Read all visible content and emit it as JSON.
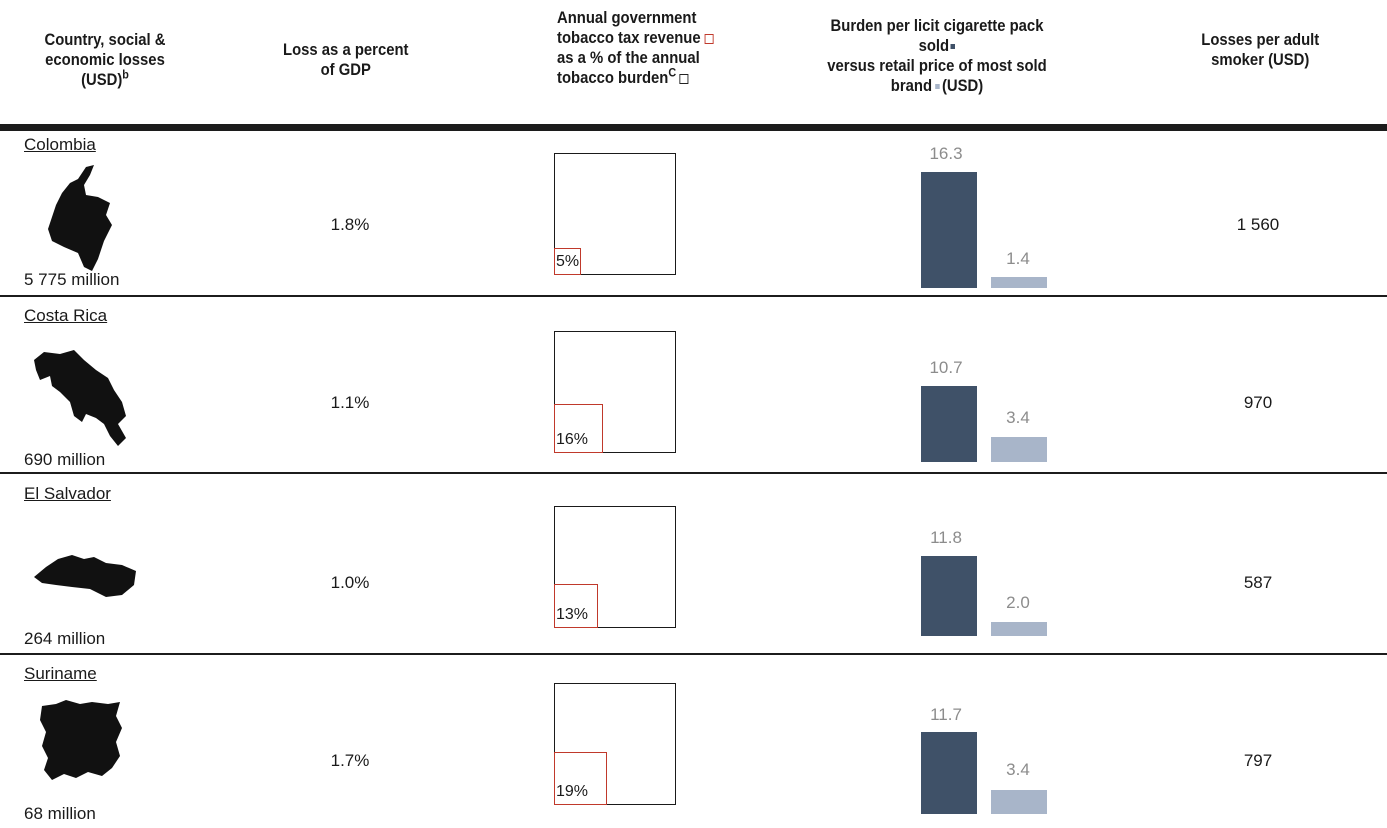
{
  "header": {
    "col1_l1": "Country, social &",
    "col1_l2": "economic losses",
    "col1_l3": "(USD)",
    "col1_sup": "b",
    "col2_l1": "Loss as a percent",
    "col2_l2": "of GDP",
    "col3_l1": "Annual government",
    "col3_l2": "tobacco tax revenue",
    "col3_l3": "as a % of the annual",
    "col3_l4": "tobacco burden",
    "col3_sup": "C",
    "col4_l1": "Burden per licit cigarette pack sold",
    "col4_l2": "versus retail price of most sold",
    "col4_l3a": "brand",
    "col4_l3b": "(USD)",
    "col5_l1": "Losses per adult",
    "col5_l2": "smoker (USD)"
  },
  "colors": {
    "burden_bar": "#3f5168",
    "price_bar": "#a8b5c9",
    "tax_square": "#c0392b"
  },
  "chart_data": {
    "type": "table",
    "columns": [
      "Country",
      "Social & economic losses (USD)",
      "Loss as a percent of GDP",
      "Tax revenue as % of annual tobacco burden",
      "Burden per licit pack sold (USD)",
      "Retail price of most sold brand (USD)",
      "Losses per adult smoker (USD)"
    ],
    "rows": [
      {
        "country": "Colombia",
        "losses": "5 775 million",
        "gdp": "1.8%",
        "tax_pct": 5,
        "tax_label": "5%",
        "burden": 16.3,
        "burden_label": "16.3",
        "price": 1.4,
        "price_label": "1.4",
        "per_smoker": "1 560"
      },
      {
        "country": "Costa Rica",
        "losses": "690 million",
        "gdp": "1.1%",
        "tax_pct": 16,
        "tax_label": "16%",
        "burden": 10.7,
        "burden_label": "10.7",
        "price": 3.4,
        "price_label": "3.4",
        "per_smoker": "970"
      },
      {
        "country": "El Salvador",
        "losses": "264 million",
        "gdp": "1.0%",
        "tax_pct": 13,
        "tax_label": "13%",
        "burden": 11.8,
        "burden_label": "11.8",
        "price": 2.0,
        "price_label": "2.0",
        "per_smoker": "587"
      },
      {
        "country": "Suriname",
        "losses": "68 million",
        "gdp": "1.7%",
        "tax_pct": 19,
        "tax_label": "19%",
        "burden": 11.7,
        "burden_label": "11.7",
        "price": 3.4,
        "price_label": "3.4",
        "per_smoker": "797"
      }
    ]
  }
}
